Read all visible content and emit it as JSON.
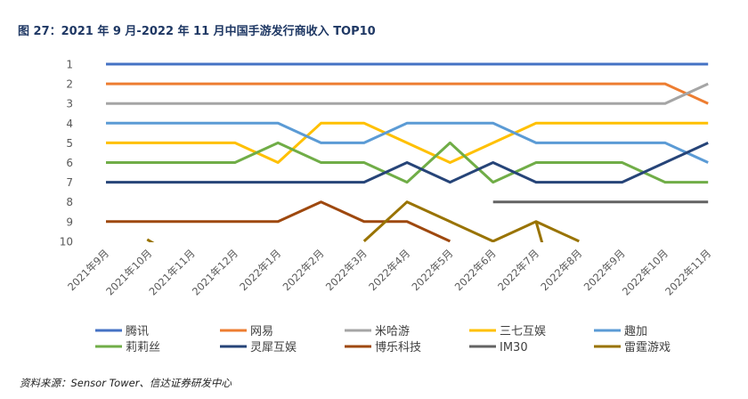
{
  "figure": {
    "title": "图 27：2021 年 9 月-2022 年 11 月中国手游发行商收入 TOP10",
    "source": "资料来源：Sensor Tower、信达证券研发中心"
  },
  "chart_data": {
    "type": "line",
    "title": "",
    "xlabel": "",
    "ylabel": "",
    "y_reversed": true,
    "ylim": [
      1,
      10
    ],
    "yticks": [
      "1",
      "2",
      "3",
      "4",
      "5",
      "6",
      "7",
      "8",
      "9",
      "10"
    ],
    "grid": false,
    "legend_position": "bottom",
    "categories": [
      "2021年9月",
      "2021年10月",
      "2021年11月",
      "2021年12月",
      "2022年1月",
      "2022年2月",
      "2022年3月",
      "2022年4月",
      "2022年5月",
      "2022年6月",
      "2022年7月",
      "2022年8月",
      "2022年9月",
      "2022年10月",
      "2022年11月"
    ],
    "series": [
      {
        "name": "腾讯",
        "color": "#4472C4",
        "values": [
          1,
          1,
          1,
          1,
          1,
          1,
          1,
          1,
          1,
          1,
          1,
          1,
          1,
          1,
          1
        ]
      },
      {
        "name": "网易",
        "color": "#ED7D31",
        "values": [
          2,
          2,
          2,
          2,
          2,
          2,
          2,
          2,
          2,
          2,
          2,
          2,
          2,
          2,
          3
        ]
      },
      {
        "name": "米哈游",
        "color": "#A5A5A5",
        "values": [
          3,
          3,
          3,
          3,
          3,
          3,
          3,
          3,
          3,
          3,
          3,
          3,
          3,
          3,
          2
        ]
      },
      {
        "name": "三七互娱",
        "color": "#FFC000",
        "values": [
          5,
          5,
          5,
          5,
          6,
          4,
          4,
          5,
          6,
          5,
          4,
          4,
          4,
          4,
          4
        ]
      },
      {
        "name": "趣加",
        "color": "#5B9BD5",
        "values": [
          4,
          4,
          4,
          4,
          4,
          5,
          5,
          4,
          4,
          4,
          5,
          5,
          5,
          5,
          6
        ]
      },
      {
        "name": "莉莉丝",
        "color": "#70AD47",
        "values": [
          6,
          6,
          6,
          6,
          5,
          6,
          6,
          7,
          5,
          7,
          6,
          6,
          6,
          7,
          7
        ]
      },
      {
        "name": "灵犀互娱",
        "color": "#264478",
        "values": [
          7,
          7,
          7,
          7,
          7,
          7,
          7,
          6,
          7,
          6,
          7,
          7,
          7,
          6,
          5
        ]
      },
      {
        "name": "博乐科技",
        "color": "#9E480E",
        "values": [
          9,
          9,
          9,
          9,
          9,
          8,
          9,
          9,
          10,
          null,
          null,
          null,
          null,
          null,
          null
        ]
      },
      {
        "name": "IM30",
        "color": "#636363",
        "values": [
          null,
          null,
          null,
          null,
          null,
          null,
          null,
          null,
          null,
          8,
          8,
          8,
          8,
          8,
          8
        ]
      },
      {
        "name": "雷霆游戏",
        "color": "#997300",
        "values": [
          null,
          10,
          null,
          null,
          null,
          null,
          10,
          8,
          9,
          10,
          9,
          10,
          null,
          null,
          null
        ]
      }
    ]
  }
}
